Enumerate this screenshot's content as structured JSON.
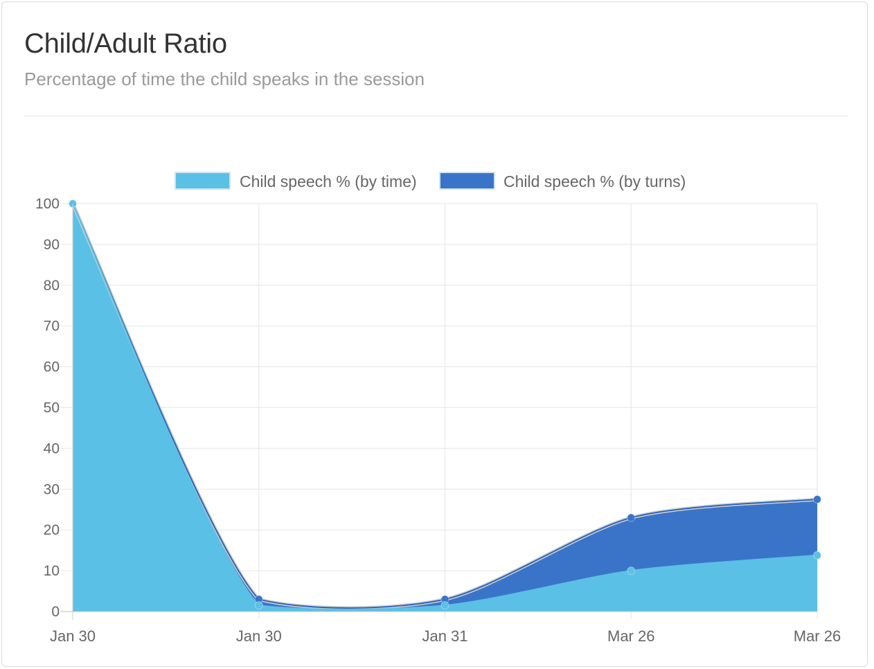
{
  "header": {
    "title": "Child/Adult Ratio",
    "subtitle": "Percentage of time the child speaks in the session"
  },
  "chart_data": {
    "type": "area",
    "title": "",
    "xlabel": "",
    "ylabel": "",
    "categories": [
      "Jan 30",
      "Jan 30",
      "Jan 31",
      "Mar 26",
      "Mar 26"
    ],
    "ylim": [
      0,
      100
    ],
    "yticks": [
      0,
      10,
      20,
      30,
      40,
      50,
      60,
      70,
      80,
      90,
      100
    ],
    "grid": true,
    "legend_position": "top-center",
    "stacked": true,
    "series": [
      {
        "name": "Child speech % (by time)",
        "values": [
          100,
          1.5,
          1.5,
          10,
          13.8
        ],
        "fill": "#5bc0e5",
        "line": "#5bc0e5",
        "point": "#5bc0e5"
      },
      {
        "name": "Child speech % (by turns)",
        "values": [
          0,
          1.5,
          1.5,
          13,
          13.7
        ],
        "fill": "#3a74c8",
        "line": "#2e66b8",
        "point": "#3a74c8"
      }
    ]
  }
}
